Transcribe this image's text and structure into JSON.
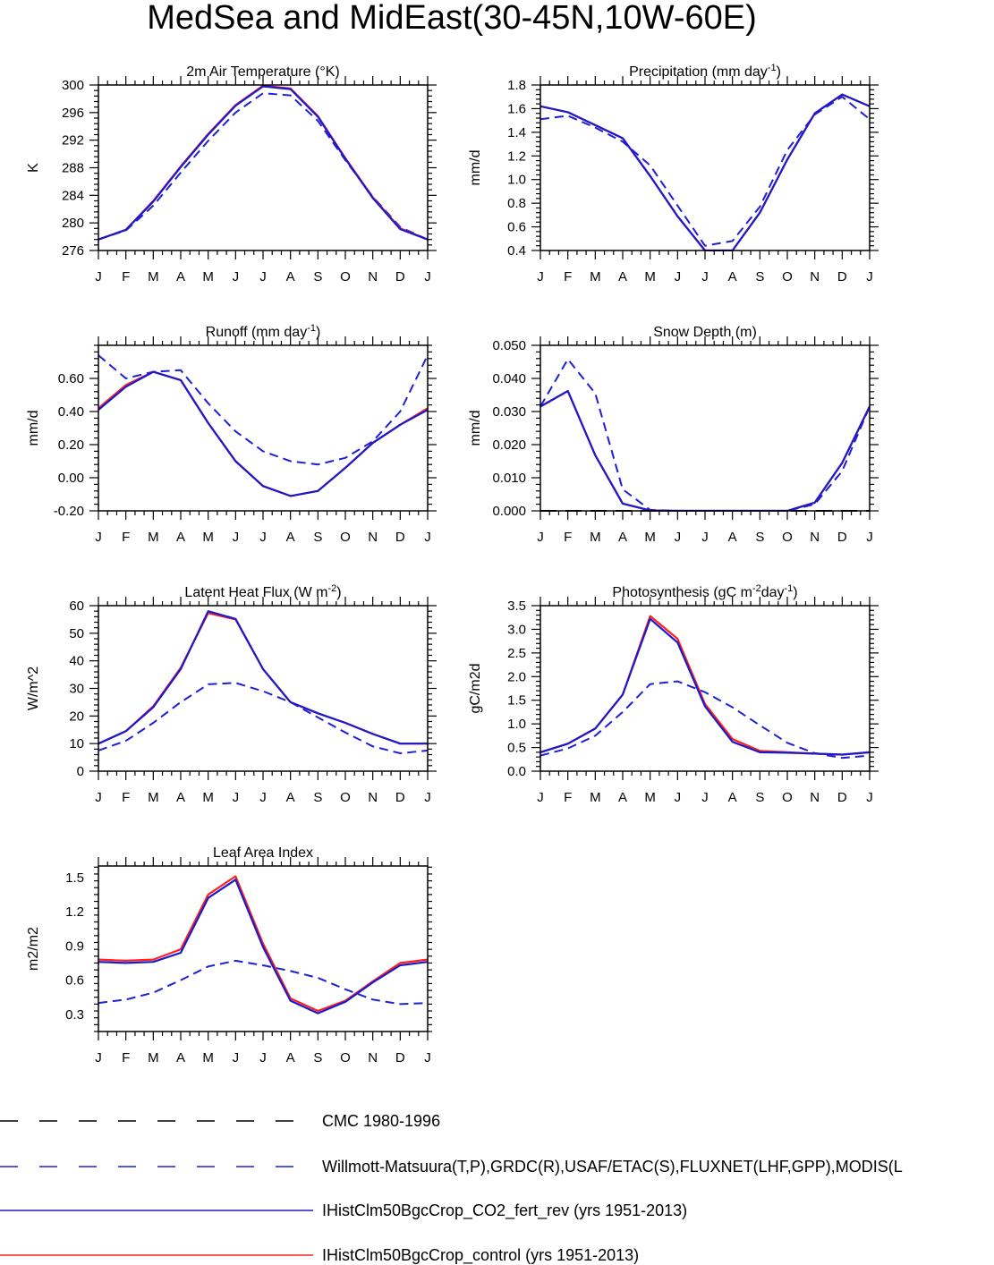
{
  "title": "MedSea and MidEast(30-45N,10W-60E)",
  "months": [
    "J",
    "F",
    "M",
    "A",
    "M",
    "J",
    "J",
    "A",
    "S",
    "O",
    "N",
    "D",
    "J"
  ],
  "colors": {
    "obs1": "#000000",
    "obs2": "#1f1fd6",
    "co2_fert_rev": "#1a1acc",
    "control": "#ff2020"
  },
  "legend": [
    {
      "key": "obs1",
      "label": "CMC 1980-1996",
      "dashed": true
    },
    {
      "key": "obs2",
      "label": "Willmott-Matsuura(T,P),GRDC(R),USAF/ETAC(S),FLUXNET(LHF,GPP),MODIS(L",
      "dashed": true
    },
    {
      "key": "co2_fert_rev",
      "label": "IHistClm50BgcCrop_CO2_fert_rev (yrs 1951-2013)",
      "dashed": false
    },
    {
      "key": "control",
      "label": "IHistClm50BgcCrop_control (yrs 1951-2013)",
      "dashed": false
    }
  ],
  "chart_data": [
    {
      "type": "line",
      "title": "2m Air Temperature (°K)",
      "ylabel": "K",
      "ylim": [
        276,
        300
      ],
      "yticks": [
        "276",
        "280",
        "284",
        "288",
        "292",
        "296",
        "300"
      ],
      "series": [
        {
          "key": "control",
          "values": [
            277.6,
            279.0,
            283.2,
            288.2,
            292.9,
            297.1,
            299.9,
            299.5,
            295.5,
            289.4,
            283.7,
            279.2,
            277.6
          ]
        },
        {
          "key": "co2_fert_rev",
          "values": [
            277.6,
            279.0,
            283.1,
            288.1,
            292.8,
            297.0,
            299.8,
            299.4,
            295.4,
            289.3,
            283.6,
            279.1,
            277.6
          ]
        },
        {
          "key": "obs2",
          "values": [
            277.6,
            278.9,
            282.5,
            287.3,
            291.9,
            296.0,
            298.8,
            298.5,
            294.8,
            289.1,
            283.8,
            279.4,
            277.6
          ]
        },
        {
          "key": "obs1",
          "values": []
        }
      ]
    },
    {
      "type": "line",
      "title": "Precipitation (mm day-1)",
      "ylabel": "mm/d",
      "ylim": [
        0.4,
        1.8
      ],
      "yticks": [
        "0.4",
        "0.6",
        "0.8",
        "1.0",
        "1.2",
        "1.4",
        "1.6",
        "1.8"
      ],
      "series": [
        {
          "key": "control",
          "values": [
            1.62,
            1.57,
            1.46,
            1.35,
            1.03,
            0.69,
            0.4,
            0.4,
            0.72,
            1.17,
            1.56,
            1.72,
            1.62
          ]
        },
        {
          "key": "co2_fert_rev",
          "values": [
            1.62,
            1.57,
            1.46,
            1.35,
            1.03,
            0.69,
            0.4,
            0.4,
            0.72,
            1.17,
            1.56,
            1.72,
            1.62
          ]
        },
        {
          "key": "obs2",
          "values": [
            1.51,
            1.54,
            1.44,
            1.32,
            1.12,
            0.78,
            0.44,
            0.48,
            0.77,
            1.25,
            1.55,
            1.7,
            1.51
          ]
        },
        {
          "key": "obs1",
          "values": []
        }
      ]
    },
    {
      "type": "line",
      "title": "Runoff (mm day-1)",
      "ylabel": "mm/d",
      "ylim": [
        -0.2,
        0.8
      ],
      "yticks": [
        "-0.20",
        "0.00",
        "0.20",
        "0.40",
        "0.60"
      ],
      "series": [
        {
          "key": "control",
          "values": [
            0.42,
            0.56,
            0.64,
            0.59,
            0.33,
            0.1,
            -0.05,
            -0.11,
            -0.08,
            0.06,
            0.21,
            0.32,
            0.42
          ]
        },
        {
          "key": "co2_fert_rev",
          "values": [
            0.41,
            0.55,
            0.64,
            0.59,
            0.33,
            0.1,
            -0.05,
            -0.11,
            -0.08,
            0.06,
            0.21,
            0.32,
            0.41
          ]
        },
        {
          "key": "obs2",
          "values": [
            0.74,
            0.6,
            0.64,
            0.65,
            0.45,
            0.28,
            0.16,
            0.1,
            0.08,
            0.12,
            0.22,
            0.4,
            0.74
          ]
        },
        {
          "key": "obs1",
          "values": []
        }
      ]
    },
    {
      "type": "line",
      "title": "Snow Depth (m)",
      "ylabel": "mm/d",
      "ylim": [
        0.0,
        0.05
      ],
      "yticks": [
        "0.000",
        "0.010",
        "0.020",
        "0.030",
        "0.040",
        "0.050"
      ],
      "series": [
        {
          "key": "control",
          "values": [
            0.0315,
            0.0362,
            0.0168,
            0.0022,
            0.0001,
            0.0,
            0.0,
            0.0,
            0.0,
            0.0,
            0.0025,
            0.0145,
            0.0315
          ]
        },
        {
          "key": "co2_fert_rev",
          "values": [
            0.0315,
            0.0362,
            0.0168,
            0.0022,
            0.0001,
            0.0,
            0.0,
            0.0,
            0.0,
            0.0,
            0.0025,
            0.0145,
            0.0315
          ]
        },
        {
          "key": "obs2",
          "values": [
            0.0315,
            0.0458,
            0.0355,
            0.0065,
            0.0003,
            0.0,
            0.0,
            0.0,
            0.0,
            0.0,
            0.002,
            0.012,
            0.0315
          ]
        },
        {
          "key": "obs1",
          "values": [
            0.0,
            0.0,
            0.0,
            0.0,
            0.0,
            0.0,
            0.0,
            0.0,
            0.0,
            0.0,
            0.0,
            0.0,
            0.0
          ]
        }
      ]
    },
    {
      "type": "line",
      "title": "Latent Heat Flux (W m-2)",
      "ylabel": "W/m^2",
      "ylim": [
        0,
        60
      ],
      "yticks": [
        "0",
        "10",
        "20",
        "30",
        "40",
        "50",
        "60"
      ],
      "series": [
        {
          "key": "control",
          "values": [
            10.0,
            14.5,
            23.5,
            37.5,
            57.3,
            55.0,
            37.0,
            25.0,
            21.0,
            17.5,
            13.5,
            10.0,
            10.0
          ]
        },
        {
          "key": "co2_fert_rev",
          "values": [
            10.0,
            14.5,
            23.2,
            37.0,
            58.0,
            55.2,
            37.0,
            25.0,
            21.0,
            17.5,
            13.5,
            10.0,
            10.0
          ]
        },
        {
          "key": "obs2",
          "values": [
            7.5,
            11.0,
            17.5,
            25.0,
            31.5,
            32.0,
            29.0,
            25.0,
            19.5,
            14.0,
            9.0,
            6.5,
            7.5
          ]
        },
        {
          "key": "obs1",
          "values": []
        }
      ]
    },
    {
      "type": "line",
      "title": "Photosynthesis (gC m-2day-1)",
      "ylabel": "gC/m2d",
      "ylim": [
        0.0,
        3.5
      ],
      "yticks": [
        "0.0",
        "0.5",
        "1.0",
        "1.5",
        "2.0",
        "2.5",
        "3.0",
        "3.5"
      ],
      "series": [
        {
          "key": "control",
          "values": [
            0.4,
            0.58,
            0.9,
            1.62,
            3.28,
            2.8,
            1.42,
            0.68,
            0.43,
            0.4,
            0.37,
            0.35,
            0.4
          ]
        },
        {
          "key": "co2_fert_rev",
          "values": [
            0.4,
            0.58,
            0.9,
            1.62,
            3.22,
            2.72,
            1.37,
            0.62,
            0.4,
            0.39,
            0.37,
            0.35,
            0.4
          ]
        },
        {
          "key": "obs2",
          "values": [
            0.33,
            0.48,
            0.75,
            1.25,
            1.84,
            1.9,
            1.67,
            1.35,
            0.97,
            0.6,
            0.38,
            0.28,
            0.33
          ]
        },
        {
          "key": "obs1",
          "values": []
        }
      ]
    },
    {
      "type": "line",
      "title": "Leaf Area Index",
      "ylabel": "m2/m2",
      "ylim": [
        0.15,
        1.6
      ],
      "yticks": [
        "0.3",
        "0.6",
        "0.9",
        "1.2",
        "1.5"
      ],
      "series": [
        {
          "key": "control",
          "values": [
            0.78,
            0.77,
            0.78,
            0.87,
            1.35,
            1.51,
            0.92,
            0.44,
            0.33,
            0.42,
            0.59,
            0.75,
            0.78
          ]
        },
        {
          "key": "co2_fert_rev",
          "values": [
            0.76,
            0.75,
            0.76,
            0.84,
            1.32,
            1.48,
            0.89,
            0.42,
            0.31,
            0.41,
            0.58,
            0.73,
            0.76
          ]
        },
        {
          "key": "obs2",
          "values": [
            0.4,
            0.43,
            0.49,
            0.6,
            0.72,
            0.77,
            0.73,
            0.68,
            0.62,
            0.52,
            0.43,
            0.39,
            0.4
          ]
        },
        {
          "key": "obs1",
          "values": []
        }
      ]
    }
  ]
}
